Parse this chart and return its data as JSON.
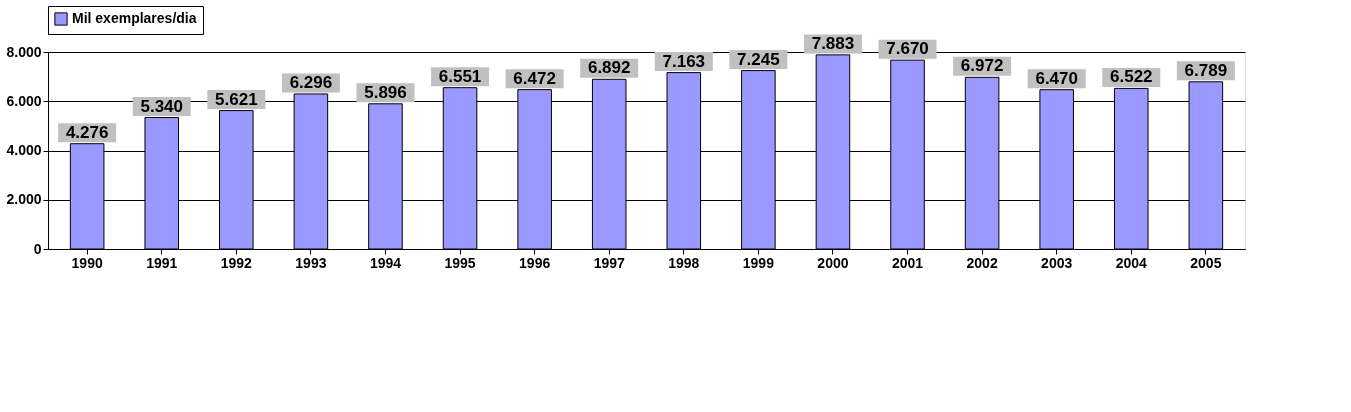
{
  "chart_data": {
    "type": "bar",
    "categories": [
      "1990",
      "1991",
      "1992",
      "1993",
      "1994",
      "1995",
      "1996",
      "1997",
      "1998",
      "1999",
      "2000",
      "2001",
      "2002",
      "2003",
      "2004",
      "2005"
    ],
    "series": [
      {
        "name": "Mil exemplares/dia",
        "color": "#9999ff",
        "values": [
          4276,
          5340,
          5621,
          6296,
          5896,
          6551,
          6472,
          6892,
          7163,
          7245,
          7883,
          7670,
          6972,
          6470,
          6522,
          6789
        ],
        "value_labels": [
          "4.276",
          "5.340",
          "5.621",
          "6.296",
          "5.896",
          "6.551",
          "6.472",
          "6.892",
          "7.163",
          "7.245",
          "7.883",
          "7.670",
          "6.972",
          "6.470",
          "6.522",
          "6.789"
        ]
      }
    ],
    "ylim": [
      0,
      8000
    ],
    "yticks": [
      {
        "value": 0,
        "label": "0"
      },
      {
        "value": 2000,
        "label": "2.000"
      },
      {
        "value": 4000,
        "label": "4.000"
      },
      {
        "value": 6000,
        "label": "6.000"
      },
      {
        "value": 8000,
        "label": "8.000"
      }
    ],
    "grid": "y",
    "legend": "top"
  }
}
